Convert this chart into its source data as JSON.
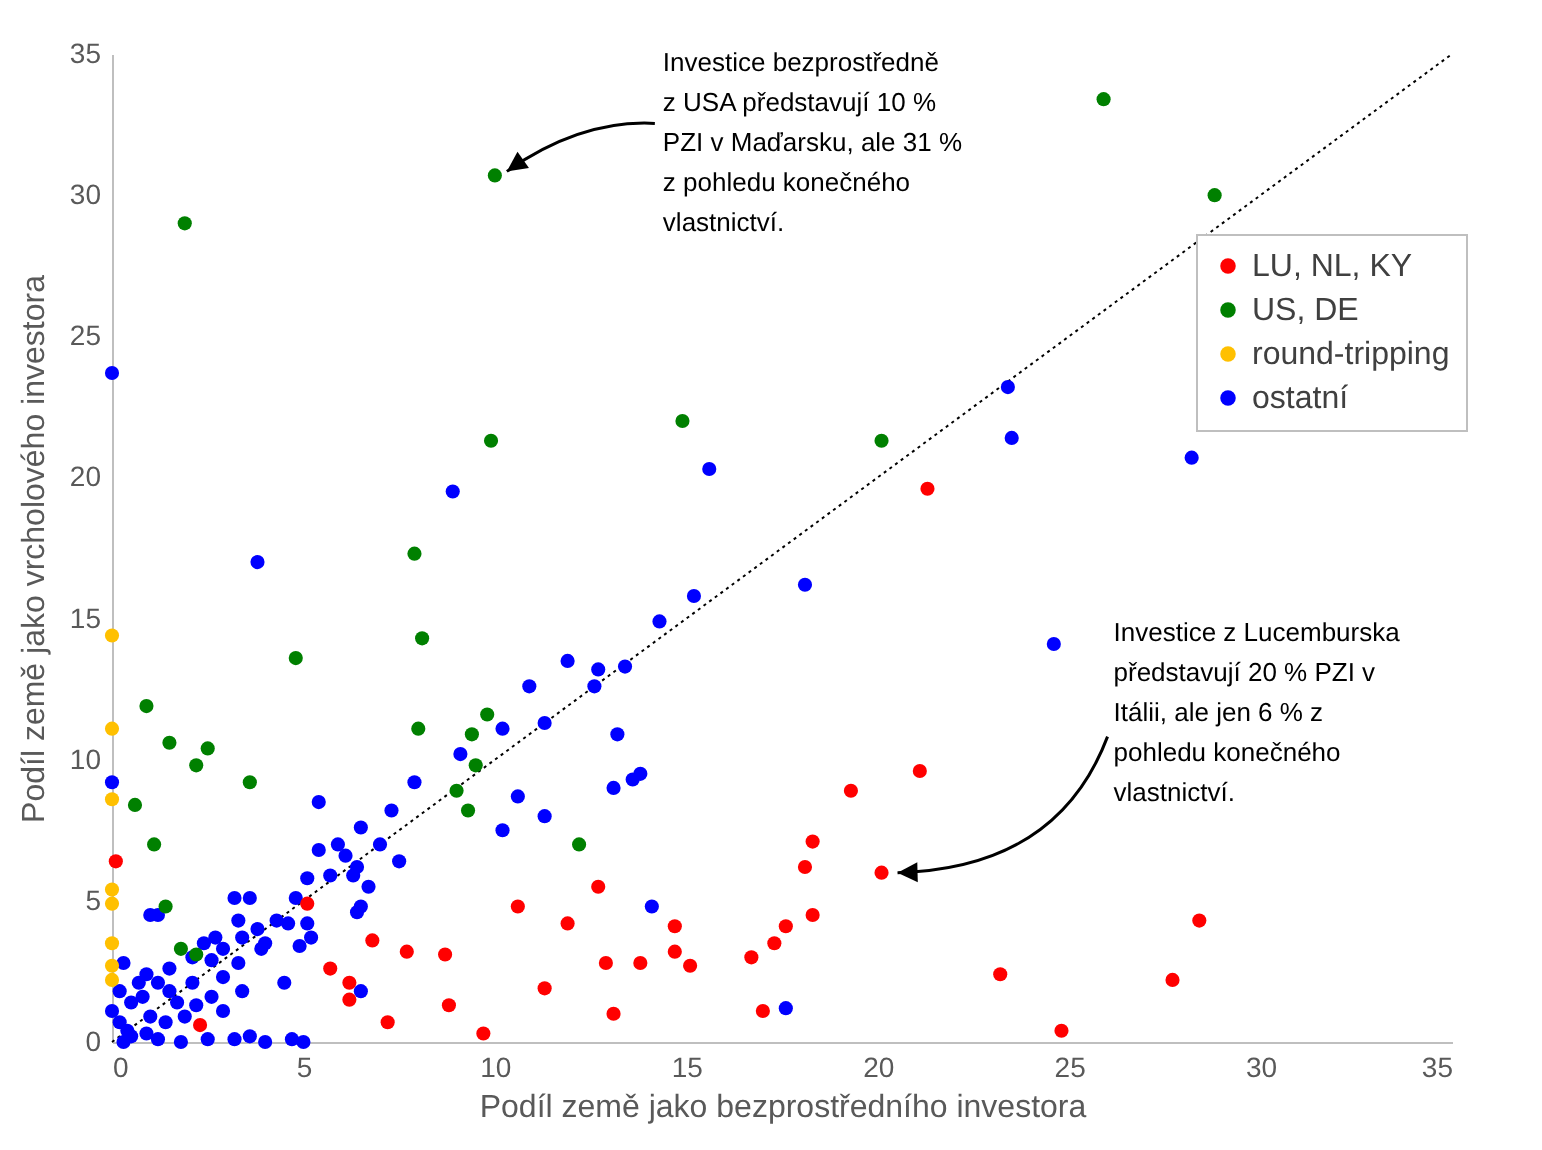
{
  "chart_data": {
    "type": "scatter",
    "xlabel": "Podíl země jako bezprostředního investora",
    "ylabel": "Podíl země jako vrcholového investora",
    "xlim": [
      0,
      35
    ],
    "xticks": [
      0,
      5,
      10,
      15,
      20,
      25,
      30,
      35
    ],
    "ylim": [
      0,
      35
    ],
    "yticks": [
      0,
      5,
      10,
      15,
      20,
      25,
      30,
      35
    ],
    "legend": "top right",
    "marker": "circle",
    "annotations": [
      {
        "text": "Investice bezprostředně z USA představují 10 % PZI v Maďarsku, ale 31 % z pohledu konečného vlastnictví.",
        "x": 10.0,
        "y": 30.7
      },
      {
        "text": "Investice z Lucemburska představují 20 % PZI v Itálii, ale jen 6 % z pohledu konečného vlastnictví.",
        "x": 20.1,
        "y": 6.0
      }
    ],
    "series": [
      {
        "name": "LU, NL, KY",
        "color": "#ff0000",
        "x": [
          21.3,
          21.1,
          19.3,
          18.3,
          18.1,
          20.1,
          18.3,
          17.6,
          17.3,
          16.7,
          17.0,
          12.7,
          10.6,
          11.9,
          14.7,
          14.7,
          15.1,
          12.9,
          13.8,
          11.3,
          13.1,
          9.7,
          28.4,
          23.2,
          27.7,
          24.8,
          0.1,
          2.3,
          5.1,
          6.8,
          7.7,
          8.7,
          5.7,
          6.2,
          6.2,
          7.2,
          8.8
        ],
        "values": [
          19.6,
          9.6,
          8.9,
          7.1,
          6.2,
          6.0,
          4.5,
          4.1,
          3.5,
          3.0,
          1.1,
          5.5,
          4.8,
          4.2,
          4.1,
          3.2,
          2.7,
          2.8,
          2.8,
          1.9,
          1.0,
          0.3,
          4.3,
          2.4,
          2.2,
          0.4,
          6.4,
          0.6,
          4.9,
          3.6,
          3.2,
          3.1,
          2.6,
          2.1,
          1.5,
          0.7,
          1.3
        ]
      },
      {
        "name": "US, DE",
        "color": "#008000",
        "x": [
          1.9,
          10.0,
          14.9,
          9.9,
          7.9,
          25.9,
          28.8,
          20.1,
          9.8,
          9.4,
          9.5,
          9.3,
          12.2,
          8.1,
          4.8,
          0.9,
          8.0,
          1.5,
          2.5,
          2.2,
          3.6,
          9.0,
          0.6,
          1.1,
          1.4,
          1.8,
          2.2
        ],
        "values": [
          29.0,
          30.7,
          22.0,
          21.3,
          17.3,
          33.4,
          30.0,
          21.3,
          11.6,
          10.9,
          9.8,
          8.2,
          7.0,
          14.3,
          13.6,
          11.9,
          11.1,
          10.6,
          10.4,
          9.8,
          9.2,
          8.9,
          8.4,
          7.0,
          4.8,
          3.3,
          3.1
        ]
      },
      {
        "name": "round-tripping",
        "color": "#ffc000",
        "x": [
          0,
          0,
          0,
          0,
          0,
          0,
          0,
          0
        ],
        "values": [
          14.4,
          11.1,
          8.6,
          5.4,
          4.9,
          3.5,
          2.7,
          2.2
        ]
      },
      {
        "name": "ostatní",
        "color": "#0000ff",
        "x": [
          0,
          8.9,
          3.8,
          15.6,
          15.2,
          14.3,
          23.4,
          23.5,
          28.2,
          24.6,
          18.1,
          11.9,
          12.7,
          13.4,
          12.6,
          10.9,
          11.3,
          10.2,
          13.2,
          13.1,
          13.6,
          13.8,
          10.6,
          11.3,
          10.2,
          14.1,
          17.6,
          0,
          9.1,
          7.9,
          5.4,
          7.3,
          6.5,
          5.4,
          5.9,
          6.1,
          7.0,
          7.5,
          6.4,
          5.7,
          5.1,
          6.3,
          6.7,
          6.5,
          6.4,
          4.8,
          4.5,
          6.5,
          3.2,
          3.6,
          1.0,
          1.2,
          3.3,
          4.3,
          4.6,
          5.1,
          3.8,
          2.7,
          3.4,
          4.0,
          5.2,
          4.9,
          2.4,
          2.9,
          3.9,
          2.6,
          3.3,
          2.1,
          1.5,
          0.9,
          0.3,
          1.2,
          2.1,
          2.9,
          3.4,
          2.6,
          1.7,
          0.5,
          1.0,
          1.9,
          2.9,
          0.2,
          0.5,
          1.2,
          1.8,
          2.5,
          3.2,
          3.6,
          4.0,
          4.7,
          5.0,
          0.3,
          0.2,
          0.7,
          0,
          1.4,
          0.8,
          1.5,
          2.2,
          0.4,
          0.9
        ],
        "values": [
          23.7,
          19.5,
          17.0,
          20.3,
          15.8,
          14.9,
          23.2,
          21.4,
          20.7,
          14.1,
          16.2,
          13.5,
          13.2,
          13.3,
          12.6,
          12.6,
          11.3,
          11.1,
          10.9,
          9.0,
          9.3,
          9.5,
          8.7,
          8.0,
          7.5,
          4.8,
          1.2,
          9.2,
          10.2,
          9.2,
          8.5,
          8.2,
          7.6,
          6.8,
          7.0,
          6.6,
          7.0,
          6.4,
          6.2,
          5.9,
          5.8,
          5.9,
          5.5,
          4.8,
          4.6,
          5.1,
          2.1,
          1.8,
          5.1,
          5.1,
          4.5,
          4.5,
          4.3,
          4.3,
          4.2,
          4.2,
          4.0,
          3.7,
          3.7,
          3.5,
          3.7,
          3.4,
          3.5,
          3.3,
          3.3,
          2.9,
          2.8,
          3.0,
          2.6,
          2.4,
          2.8,
          2.1,
          2.1,
          2.3,
          1.8,
          1.6,
          1.4,
          1.4,
          0.9,
          0.9,
          1.1,
          0.7,
          0.2,
          0.1,
          0,
          0.1,
          0.1,
          0.2,
          0,
          0.1,
          0,
          0,
          1.8,
          2.1,
          1.1,
          0.7,
          1.6,
          1.8,
          1.3,
          0.4,
          0.3
        ]
      },
      {
        "type": "line",
        "color": "#000000",
        "line_style": "dotted",
        "marker": "none",
        "x": [
          0,
          35
        ],
        "values": [
          0,
          35
        ]
      }
    ]
  }
}
